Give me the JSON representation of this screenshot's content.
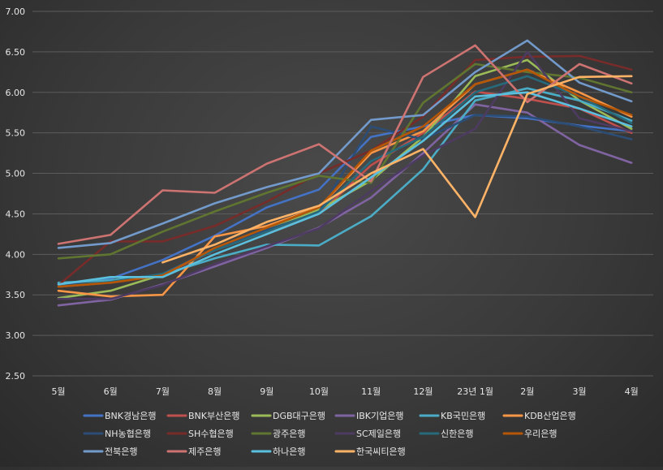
{
  "chart_data": {
    "type": "line",
    "title": "",
    "xlabel": "",
    "ylabel": "",
    "ylim": [
      2.5,
      7.0
    ],
    "yticks": [
      "2.50",
      "3.00",
      "3.50",
      "4.00",
      "4.50",
      "5.00",
      "5.50",
      "6.00",
      "6.50",
      "7.00"
    ],
    "categories": [
      "5월",
      "6월",
      "7월",
      "8월",
      "9월",
      "10월",
      "11월",
      "12월",
      "23년 1월",
      "2월",
      "3월",
      "4월"
    ],
    "grid": true,
    "legend_position": "bottom",
    "series": [
      {
        "name": "BNK경남은행",
        "color": "#4472C4",
        "values": [
          3.63,
          3.7,
          3.93,
          4.23,
          4.58,
          4.8,
          5.45,
          5.58,
          5.72,
          5.68,
          5.59,
          5.52
        ]
      },
      {
        "name": "BNK부산은행",
        "color": "#C0504D",
        "values": [
          3.6,
          3.65,
          3.75,
          4.05,
          4.28,
          4.5,
          5.1,
          5.5,
          6.01,
          5.92,
          5.8,
          5.5
        ]
      },
      {
        "name": "DGB대구은행",
        "color": "#9BBB59",
        "values": [
          3.46,
          3.55,
          3.75,
          4.07,
          4.3,
          4.55,
          4.91,
          5.45,
          6.2,
          6.4,
          5.9,
          5.55
        ]
      },
      {
        "name": "IBK기업은행",
        "color": "#8064A2",
        "values": [
          3.37,
          3.44,
          3.63,
          3.85,
          4.08,
          4.33,
          4.7,
          5.25,
          5.85,
          5.75,
          5.35,
          5.13
        ]
      },
      {
        "name": "KB국민은행",
        "color": "#4BACC6",
        "values": [
          3.65,
          3.68,
          3.75,
          3.95,
          4.12,
          4.11,
          4.47,
          5.05,
          5.9,
          6.05,
          5.9,
          5.65
        ]
      },
      {
        "name": "KDB산업은행",
        "color": "#F79646",
        "values": [
          3.55,
          3.48,
          3.5,
          4.22,
          4.35,
          4.58,
          5.25,
          5.52,
          6.1,
          6.28,
          6.0,
          5.7
        ]
      },
      {
        "name": "NH농협은행",
        "color": "#2C4D75",
        "values": [
          3.6,
          3.65,
          3.76,
          4.07,
          4.3,
          4.52,
          5.58,
          5.42,
          5.72,
          5.7,
          5.58,
          5.42
        ]
      },
      {
        "name": "SH수협은행",
        "color": "#772C2A",
        "values": [
          3.62,
          4.16,
          4.16,
          4.35,
          4.65,
          5.0,
          5.28,
          5.7,
          6.4,
          6.44,
          6.45,
          6.28
        ]
      },
      {
        "name": "광주은행",
        "color": "#5F7530",
        "values": [
          3.95,
          4.0,
          4.28,
          4.53,
          4.76,
          4.97,
          4.88,
          5.87,
          6.35,
          6.25,
          6.18,
          6.0
        ]
      },
      {
        "name": "SC제일은행",
        "color": "#4D3B62",
        "values": [
          3.45,
          3.45,
          3.62,
          3.88,
          4.1,
          4.32,
          4.78,
          5.22,
          5.55,
          6.5,
          5.68,
          5.52
        ]
      },
      {
        "name": "신한은행",
        "color": "#276A7C",
        "values": [
          3.6,
          3.66,
          3.76,
          4.05,
          4.28,
          4.53,
          5.15,
          5.45,
          6.0,
          6.2,
          5.95,
          5.62
        ]
      },
      {
        "name": "우리은행",
        "color": "#B65708",
        "values": [
          3.6,
          3.65,
          3.74,
          4.08,
          4.33,
          4.58,
          5.28,
          5.58,
          6.1,
          6.28,
          5.95,
          5.72
        ]
      },
      {
        "name": "전북은행",
        "color": "#729ACA",
        "values": [
          4.08,
          4.14,
          4.38,
          4.63,
          4.83,
          5.0,
          5.66,
          5.72,
          6.25,
          6.64,
          6.12,
          5.89
        ]
      },
      {
        "name": "제주은행",
        "color": "#CD7371",
        "values": [
          4.13,
          4.24,
          4.79,
          4.76,
          5.12,
          5.36,
          4.9,
          6.19,
          6.58,
          5.88,
          6.35,
          6.11
        ]
      },
      {
        "name": "하나은행",
        "color": "#5BC0DE",
        "values": [
          3.63,
          3.72,
          3.72,
          4.0,
          4.25,
          4.5,
          4.95,
          5.4,
          5.95,
          6.0,
          5.8,
          5.58
        ]
      },
      {
        "name": "한국씨티은행",
        "color": "#FFB366",
        "values": [
          null,
          null,
          3.9,
          4.12,
          4.4,
          4.6,
          5.0,
          5.3,
          4.46,
          5.98,
          6.19,
          6.2
        ]
      }
    ]
  }
}
